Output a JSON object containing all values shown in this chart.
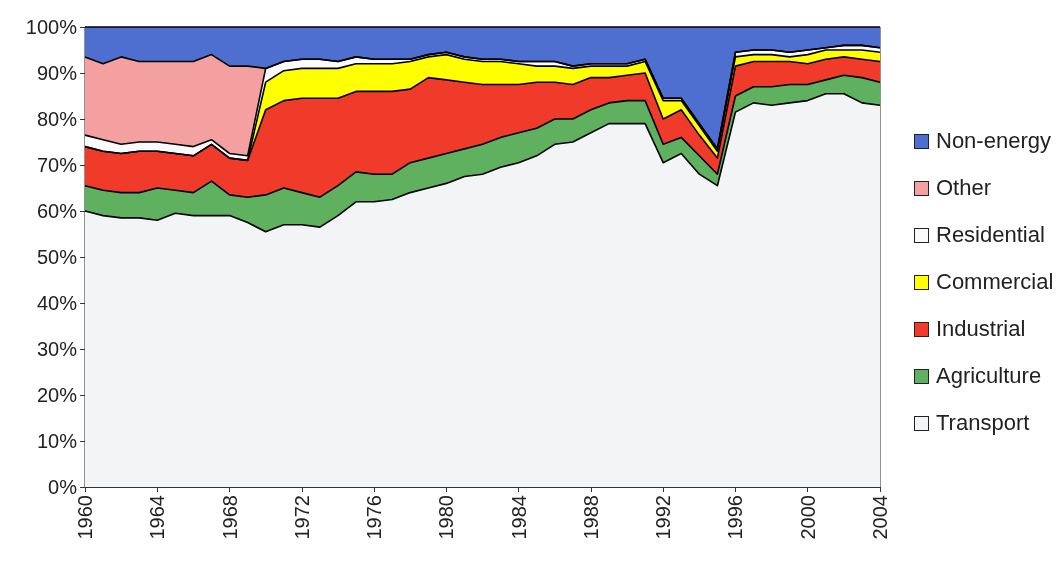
{
  "chart_data": {
    "type": "area",
    "stacked": true,
    "categories": [
      "1960",
      null,
      null,
      null,
      "1964",
      null,
      null,
      null,
      "1968",
      null,
      null,
      null,
      "1972",
      null,
      null,
      null,
      "1976",
      null,
      null,
      null,
      "1980",
      null,
      null,
      null,
      "1984",
      null,
      null,
      null,
      "1988",
      null,
      null,
      null,
      "1992",
      null,
      null,
      null,
      "1996",
      null,
      null,
      null,
      "2000",
      null,
      null,
      null,
      "2004"
    ],
    "ylim": [
      0,
      100
    ],
    "yticks": [
      {
        "value": 0,
        "label": "0%"
      },
      {
        "value": 10,
        "label": "10%"
      },
      {
        "value": 20,
        "label": "20%"
      },
      {
        "value": 30,
        "label": "30%"
      },
      {
        "value": 40,
        "label": "40%"
      },
      {
        "value": 50,
        "label": "50%"
      },
      {
        "value": 60,
        "label": "60%"
      },
      {
        "value": 70,
        "label": "70%"
      },
      {
        "value": 80,
        "label": "80%"
      },
      {
        "value": 90,
        "label": "90%"
      },
      {
        "value": 100,
        "label": "100%"
      }
    ],
    "grid": false,
    "legend": "right",
    "marker": "none",
    "series": [
      {
        "name": "Transport",
        "color": "#f2f4f6",
        "values": [
          60,
          59,
          58.5,
          58.5,
          58,
          59.5,
          59,
          59,
          59,
          57.5,
          55.5,
          57,
          57,
          56.5,
          59,
          62,
          62,
          62.5,
          64,
          65,
          66,
          67.5,
          68,
          69.5,
          70.5,
          72,
          74.5,
          75,
          77,
          79,
          79,
          79,
          70.5,
          72.5,
          68,
          65.5,
          81.5,
          83.5,
          83,
          83.5,
          84,
          85.5,
          85.5,
          83.5,
          83
        ]
      },
      {
        "name": "Agriculture",
        "color": "#5fb05f",
        "values": [
          5.5,
          5.5,
          5.5,
          5.5,
          7,
          5,
          5,
          7.5,
          4.5,
          5.5,
          8,
          8,
          7,
          6.5,
          6.5,
          6.5,
          6,
          5.5,
          6.5,
          6.5,
          6.5,
          6,
          6.5,
          6.5,
          6.5,
          6,
          5.5,
          5,
          5,
          4.5,
          5,
          5,
          4,
          3.5,
          4,
          2.5,
          3.5,
          3.5,
          4,
          4,
          3.5,
          3,
          4,
          5.5,
          5
        ]
      },
      {
        "name": "Industrial",
        "color": "#f03a2a",
        "values": [
          8.5,
          8.5,
          8.5,
          9,
          8,
          8,
          8,
          8,
          8,
          8,
          18.5,
          19,
          20.5,
          21.5,
          19,
          17.5,
          18,
          18,
          16,
          17.5,
          16,
          14.5,
          13,
          11.5,
          10.5,
          10,
          8,
          7.5,
          7,
          5.5,
          5.5,
          6,
          5.5,
          6,
          4.5,
          3.5,
          6.5,
          5.5,
          5.5,
          5,
          4.5,
          4.5,
          4,
          4,
          4.5
        ]
      },
      {
        "name": "Commercial",
        "color": "#ffff00",
        "values": [
          0,
          0,
          0,
          0,
          0,
          0,
          0,
          0,
          0,
          0,
          6,
          6.5,
          6.5,
          6.5,
          6.5,
          6,
          6,
          6,
          6,
          4.5,
          5.5,
          5,
          5,
          5,
          4.5,
          3.5,
          3.5,
          3.5,
          2.5,
          2.5,
          2,
          2.5,
          4,
          2,
          2,
          1.5,
          2,
          1.5,
          1.5,
          1,
          2,
          2,
          1.5,
          2,
          2
        ]
      },
      {
        "name": "Residential",
        "color": "#fafafa",
        "values": [
          2.5,
          2.5,
          2,
          2,
          2,
          2,
          2,
          1,
          1,
          1,
          3,
          2,
          2,
          2,
          1.5,
          1.5,
          1,
          1,
          0.5,
          0.5,
          0.5,
          0.5,
          0.5,
          0.5,
          0.5,
          1,
          1,
          0.5,
          0.5,
          0.5,
          0.5,
          0.5,
          0.5,
          0.5,
          0.5,
          0.5,
          1,
          1,
          1,
          1,
          1,
          0.5,
          1,
          1,
          1
        ]
      },
      {
        "name": "Other",
        "color": "#f4a0a0",
        "values": [
          17,
          16.5,
          19,
          17.5,
          17.5,
          18,
          18.5,
          18.5,
          19,
          19.5,
          0,
          0,
          0,
          0,
          0,
          0,
          0,
          0,
          0,
          0,
          0,
          0,
          0,
          0,
          0,
          0,
          0,
          0,
          0,
          0,
          0,
          0,
          0,
          0,
          0,
          0,
          0,
          0,
          0,
          0,
          0,
          0,
          0,
          0,
          0
        ]
      },
      {
        "name": "Non-energy",
        "color": "#4f6fd0",
        "values": [
          6.5,
          8,
          6.5,
          7.5,
          7.5,
          7.5,
          7.5,
          6,
          8.5,
          8.5,
          9,
          7.5,
          7,
          7,
          7.5,
          6.5,
          7,
          7,
          7,
          6,
          5.5,
          6.5,
          7,
          7,
          7.5,
          7.5,
          7.5,
          8.5,
          8,
          8,
          8,
          7,
          15.5,
          15.5,
          21,
          26.5,
          5.5,
          5,
          5,
          5.5,
          5,
          4.5,
          4,
          4,
          4.5
        ]
      }
    ]
  }
}
